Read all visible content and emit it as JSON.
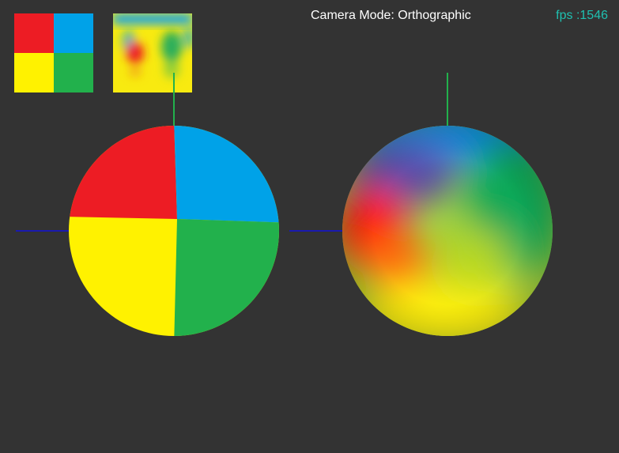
{
  "hud": {
    "camera_mode": "Camera Mode: Orthographic",
    "fps": "fps :1546"
  },
  "colors": {
    "background": "#333333",
    "red": "#ed1c24",
    "blue": "#00a2e8",
    "yellow": "#fff200",
    "green": "#22b14c",
    "axis_y": "#22b14c",
    "axis_x": "#1a1ab0",
    "fps_text": "#1fc0b0"
  },
  "icons": {
    "quadrant_texture": "quadrant-texture-icon",
    "blurred_texture": "blurred-texture-icon"
  }
}
